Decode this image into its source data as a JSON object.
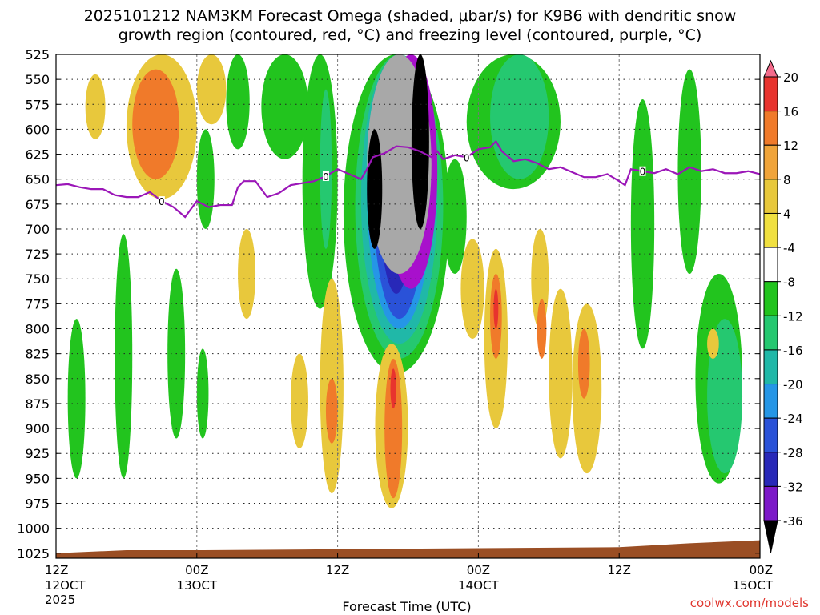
{
  "chart_data": {
    "type": "heatmap",
    "title_line1": "2025101212 NAM3KM Forecast Omega (shaded, μbar/s) for K9B6 with dendritic snow",
    "title_line2": "growth region (contoured, red, °C) and freezing level (contoured, purple, °C)",
    "xlabel": "Forecast Time (UTC)",
    "credit": "coolwx.com/models",
    "y_axis": {
      "unit": "hPa",
      "ylim": [
        1030,
        525
      ],
      "ticks": [
        "525",
        "550",
        "575",
        "600",
        "625",
        "650",
        "675",
        "700",
        "725",
        "750",
        "775",
        "800",
        "825",
        "850",
        "875",
        "900",
        "925",
        "950",
        "975",
        "1000",
        "1025"
      ]
    },
    "x_axis": {
      "xlim": [
        0,
        60
      ],
      "ticks": [
        {
          "hour": 0,
          "l1": "12Z",
          "l2": "12OCT",
          "l3": "2025"
        },
        {
          "hour": 12,
          "l1": "00Z",
          "l2": "13OCT",
          "l3": ""
        },
        {
          "hour": 24,
          "l1": "12Z",
          "l2": "",
          "l3": ""
        },
        {
          "hour": 36,
          "l1": "00Z",
          "l2": "14OCT",
          "l3": ""
        },
        {
          "hour": 48,
          "l1": "12Z",
          "l2": "",
          "l3": ""
        },
        {
          "hour": 60,
          "l1": "00Z",
          "l2": "15OCT",
          "l3": ""
        }
      ]
    },
    "colorbar": {
      "labels": [
        "20",
        "16",
        "12",
        "8",
        "4",
        "-4",
        "-8",
        "-12",
        "-16",
        "-20",
        "-24",
        "-28",
        "-32",
        "-36"
      ],
      "colors": [
        "#f46a8a",
        "#e8332e",
        "#f07a2a",
        "#f0a43a",
        "#e8c83c",
        "#f0e040",
        "#ffffff",
        "#22c41e",
        "#25c870",
        "#20b8a8",
        "#2596e6",
        "#2a52d8",
        "#2828b8",
        "#7c18c8",
        "#a810cc",
        "#a8a8a8",
        "#000000"
      ]
    },
    "freezing_level": {
      "label": "0",
      "points": [
        [
          0,
          656
        ],
        [
          1,
          655
        ],
        [
          2,
          658
        ],
        [
          3,
          660
        ],
        [
          4,
          660
        ],
        [
          5,
          666
        ],
        [
          6,
          668
        ],
        [
          7,
          668
        ],
        [
          8,
          663
        ],
        [
          9,
          672
        ],
        [
          10,
          678
        ],
        [
          11,
          688
        ],
        [
          12,
          672
        ],
        [
          13,
          678
        ],
        [
          14,
          676
        ],
        [
          15,
          676
        ],
        [
          15.5,
          658
        ],
        [
          16,
          652
        ],
        [
          17,
          652
        ],
        [
          17.5,
          660
        ],
        [
          18,
          668
        ],
        [
          19,
          664
        ],
        [
          20,
          656
        ],
        [
          21,
          654
        ],
        [
          22,
          652
        ],
        [
          23,
          647
        ],
        [
          24,
          640
        ],
        [
          25,
          645
        ],
        [
          26,
          650
        ],
        [
          26.5,
          640
        ],
        [
          27,
          628
        ],
        [
          28,
          624
        ],
        [
          29,
          617
        ],
        [
          30,
          618
        ],
        [
          31,
          622
        ],
        [
          32,
          628
        ],
        [
          32.5,
          622
        ],
        [
          33,
          630
        ],
        [
          34,
          626
        ],
        [
          35,
          628
        ],
        [
          36,
          620
        ],
        [
          37,
          618
        ],
        [
          37.5,
          612
        ],
        [
          38,
          622
        ],
        [
          39,
          632
        ],
        [
          40,
          630
        ],
        [
          41,
          634
        ],
        [
          42,
          640
        ],
        [
          43,
          638
        ],
        [
          44,
          643
        ],
        [
          45,
          648
        ],
        [
          46,
          648
        ],
        [
          47,
          645
        ],
        [
          48,
          652
        ],
        [
          48.5,
          656
        ],
        [
          49,
          640
        ],
        [
          50,
          642
        ],
        [
          51,
          644
        ],
        [
          52,
          640
        ],
        [
          53,
          645
        ],
        [
          54,
          638
        ],
        [
          55,
          642
        ],
        [
          56,
          640
        ],
        [
          57,
          644
        ],
        [
          58,
          644
        ],
        [
          59,
          642
        ],
        [
          60,
          645
        ]
      ]
    },
    "omega_regions": [
      {
        "name": "green-a",
        "value": -6,
        "t": [
          1,
          2.5
        ],
        "p": [
          790,
          950
        ]
      },
      {
        "name": "green-b",
        "value": -6,
        "t": [
          5,
          6.5
        ],
        "p": [
          705,
          950
        ]
      },
      {
        "name": "green-c",
        "value": -6,
        "t": [
          9.5,
          11
        ],
        "p": [
          740,
          910
        ]
      },
      {
        "name": "green-d",
        "value": -6,
        "t": [
          12,
          13.5
        ],
        "p": [
          600,
          700
        ]
      },
      {
        "name": "green-e",
        "value": -6,
        "t": [
          12,
          13
        ],
        "p": [
          820,
          910
        ]
      },
      {
        "name": "green-f",
        "value": -6,
        "t": [
          14.5,
          16.5
        ],
        "p": [
          525,
          620
        ]
      },
      {
        "name": "green-g",
        "value": -6,
        "t": [
          17.5,
          21.5
        ],
        "p": [
          525,
          630
        ]
      },
      {
        "name": "green-h",
        "value": -6,
        "t": [
          21,
          24
        ],
        "p": [
          525,
          780
        ]
      },
      {
        "name": "green-i",
        "value": -6,
        "t": [
          24.5,
          33.5
        ],
        "p": [
          525,
          845
        ]
      },
      {
        "name": "green-j",
        "value": -6,
        "t": [
          33,
          35
        ],
        "p": [
          630,
          745
        ]
      },
      {
        "name": "green-k",
        "value": -6,
        "t": [
          35,
          43
        ],
        "p": [
          525,
          660
        ]
      },
      {
        "name": "green-l",
        "value": -6,
        "t": [
          49,
          51
        ],
        "p": [
          570,
          820
        ]
      },
      {
        "name": "green-m",
        "value": -6,
        "t": [
          53,
          55
        ],
        "p": [
          540,
          745
        ]
      },
      {
        "name": "green-n",
        "value": -6,
        "t": [
          54.5,
          58.5
        ],
        "p": [
          745,
          955
        ]
      },
      {
        "name": "teal-a",
        "value": -10,
        "t": [
          22.5,
          23.5
        ],
        "p": [
          560,
          720
        ]
      },
      {
        "name": "teal-b",
        "value": -10,
        "t": [
          25.5,
          33
        ],
        "p": [
          525,
          830
        ]
      },
      {
        "name": "teal-c",
        "value": -10,
        "t": [
          37,
          42
        ],
        "p": [
          525,
          650
        ]
      },
      {
        "name": "teal-d",
        "value": -10,
        "t": [
          55.5,
          58.5
        ],
        "p": [
          790,
          945
        ]
      },
      {
        "name": "cyan",
        "value": -14,
        "t": [
          26,
          32.5
        ],
        "p": [
          525,
          815
        ]
      },
      {
        "name": "lightblue",
        "value": -18,
        "t": [
          26.5,
          32
        ],
        "p": [
          525,
          800
        ]
      },
      {
        "name": "blue",
        "value": -22,
        "t": [
          27,
          31.5
        ],
        "p": [
          525,
          790
        ]
      },
      {
        "name": "darkblue",
        "value": -26,
        "t": [
          27.5,
          30.5
        ],
        "p": [
          540,
          765
        ]
      },
      {
        "name": "purple",
        "value": -30,
        "t": [
          28,
          32.5
        ],
        "p": [
          525,
          760
        ]
      },
      {
        "name": "gray",
        "value": -34,
        "t": [
          26.5,
          32
        ],
        "p": [
          525,
          745
        ]
      },
      {
        "name": "black-a",
        "value": -38,
        "t": [
          26.5,
          27.8
        ],
        "p": [
          600,
          720
        ]
      },
      {
        "name": "black-b",
        "value": -38,
        "t": [
          30.3,
          31.8
        ],
        "p": [
          525,
          700
        ]
      },
      {
        "name": "yellow-a",
        "value": 6,
        "t": [
          2.5,
          4.2
        ],
        "p": [
          545,
          610
        ]
      },
      {
        "name": "yellow-b",
        "value": 6,
        "t": [
          6,
          12
        ],
        "p": [
          525,
          670
        ]
      },
      {
        "name": "yellow-c",
        "value": 6,
        "t": [
          12,
          14.5
        ],
        "p": [
          525,
          595
        ]
      },
      {
        "name": "yellow-d",
        "value": 6,
        "t": [
          15.5,
          17
        ],
        "p": [
          700,
          790
        ]
      },
      {
        "name": "yellow-e",
        "value": 6,
        "t": [
          20,
          21.5
        ],
        "p": [
          825,
          920
        ]
      },
      {
        "name": "yellow-f",
        "value": 6,
        "t": [
          22.5,
          24.5
        ],
        "p": [
          750,
          965
        ]
      },
      {
        "name": "yellow-g",
        "value": 6,
        "t": [
          27.2,
          30
        ],
        "p": [
          815,
          980
        ]
      },
      {
        "name": "yellow-h",
        "value": 6,
        "t": [
          34.5,
          36.5
        ],
        "p": [
          710,
          810
        ]
      },
      {
        "name": "yellow-i",
        "value": 6,
        "t": [
          36.5,
          38.5
        ],
        "p": [
          720,
          900
        ]
      },
      {
        "name": "yellow-j",
        "value": 6,
        "t": [
          40.5,
          42
        ],
        "p": [
          700,
          800
        ]
      },
      {
        "name": "yellow-k",
        "value": 6,
        "t": [
          42,
          44
        ],
        "p": [
          760,
          930
        ]
      },
      {
        "name": "yellow-l",
        "value": 6,
        "t": [
          44,
          46.5
        ],
        "p": [
          775,
          945
        ]
      },
      {
        "name": "yellow-m",
        "value": 6,
        "t": [
          55.5,
          56.5
        ],
        "p": [
          800,
          830
        ]
      },
      {
        "name": "orange-a",
        "value": 10,
        "t": [
          6.5,
          10.5
        ],
        "p": [
          540,
          650
        ]
      },
      {
        "name": "orange-b",
        "value": 10,
        "t": [
          23,
          24
        ],
        "p": [
          850,
          915
        ]
      },
      {
        "name": "orange-c",
        "value": 10,
        "t": [
          28,
          29.5
        ],
        "p": [
          830,
          970
        ]
      },
      {
        "name": "orange-d",
        "value": 10,
        "t": [
          37,
          38
        ],
        "p": [
          745,
          830
        ]
      },
      {
        "name": "orange-e",
        "value": 10,
        "t": [
          41,
          41.8
        ],
        "p": [
          770,
          830
        ]
      },
      {
        "name": "orange-f",
        "value": 10,
        "t": [
          44.5,
          45.5
        ],
        "p": [
          800,
          870
        ]
      },
      {
        "name": "red-a",
        "value": 14,
        "t": [
          28.5,
          29
        ],
        "p": [
          840,
          880
        ]
      },
      {
        "name": "red-b",
        "value": 14,
        "t": [
          37.3,
          37.7
        ],
        "p": [
          760,
          800
        ]
      }
    ],
    "terrain": {
      "points": [
        [
          0,
          1025
        ],
        [
          6,
          1022
        ],
        [
          12,
          1022
        ],
        [
          24,
          1021
        ],
        [
          36,
          1020
        ],
        [
          48,
          1019
        ],
        [
          54,
          1015
        ],
        [
          60,
          1012
        ]
      ]
    }
  }
}
